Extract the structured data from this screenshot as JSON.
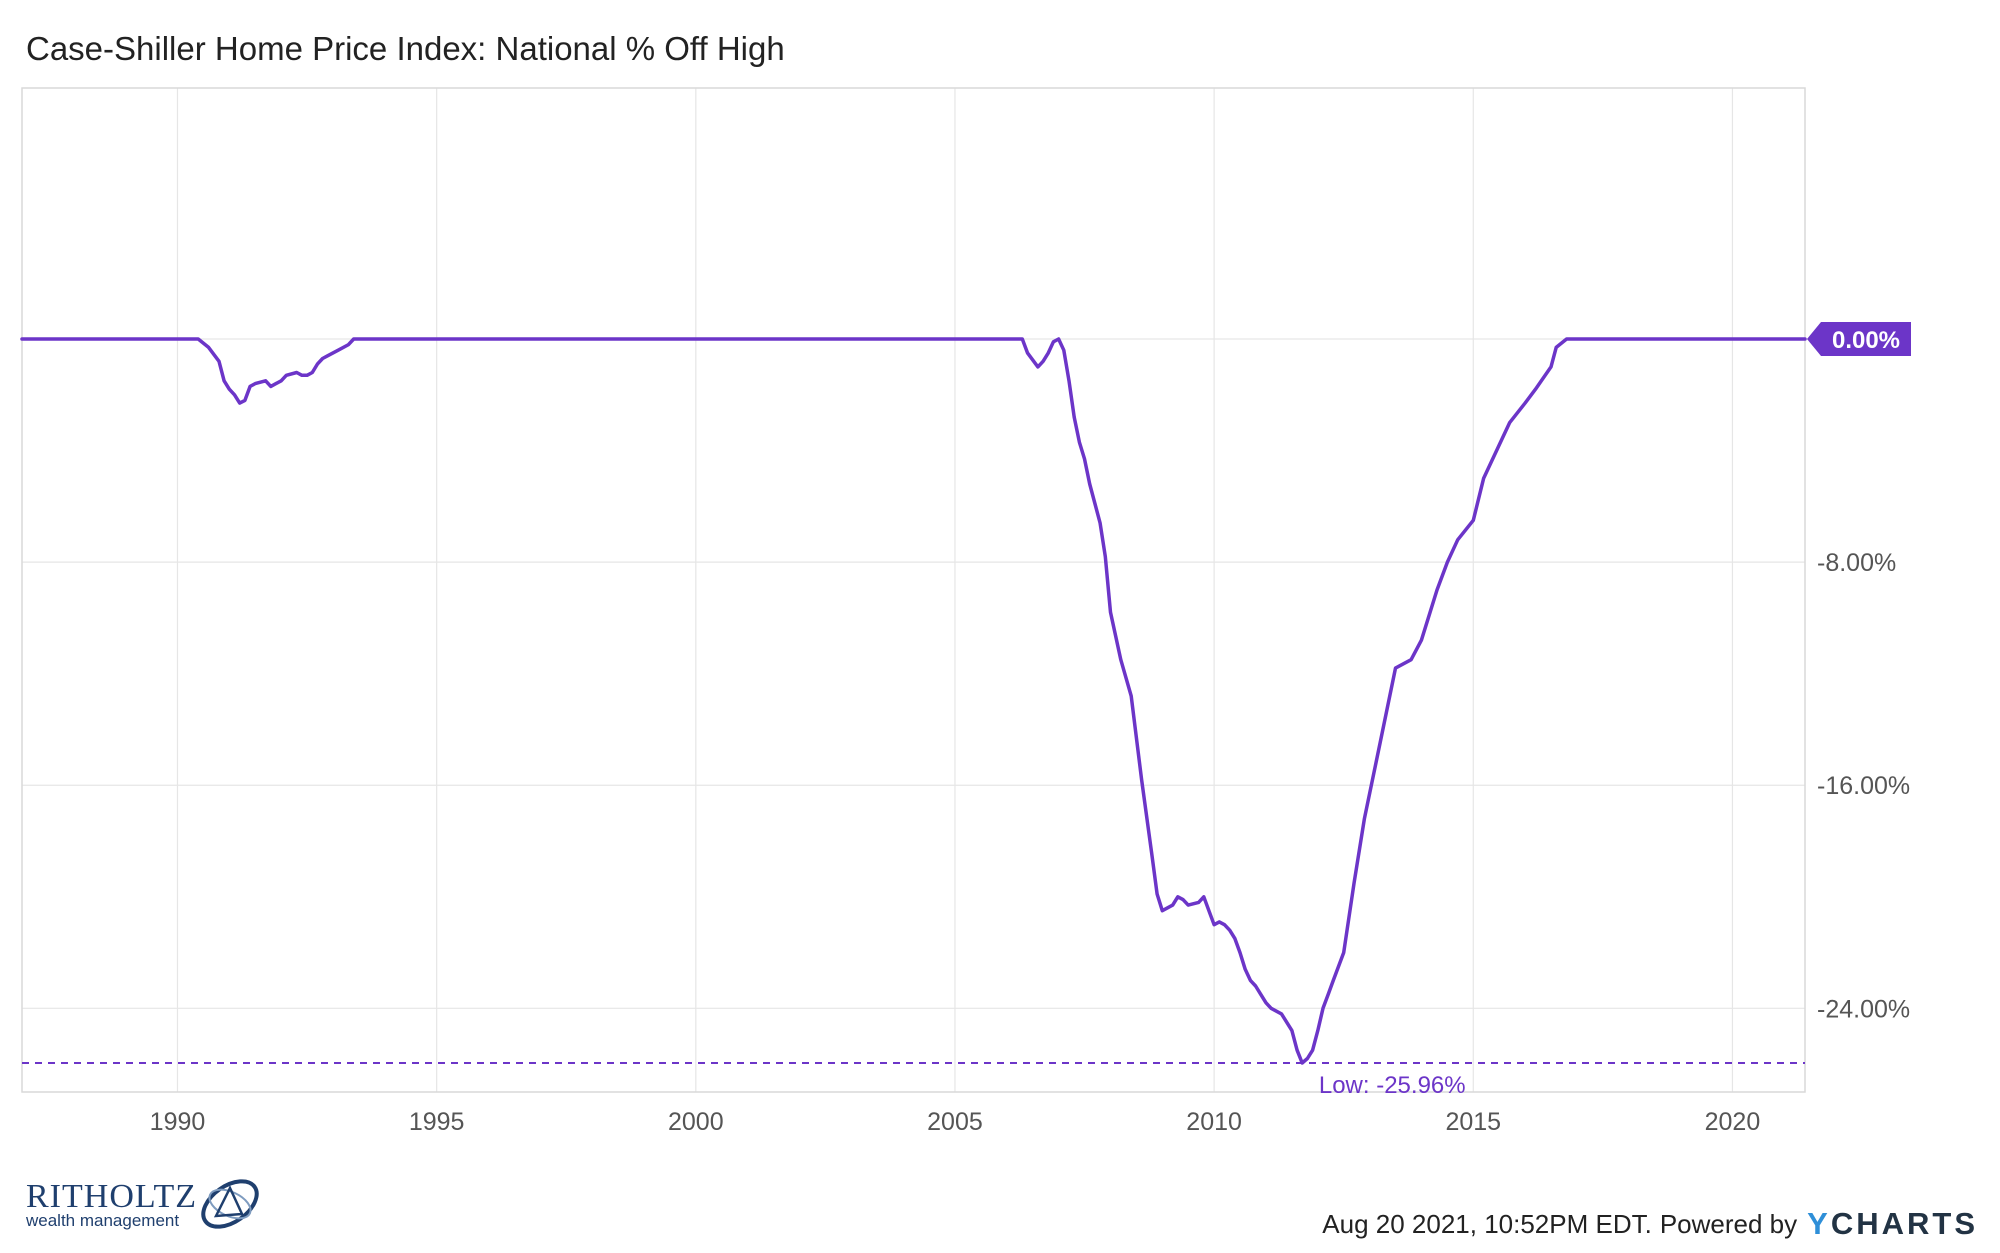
{
  "title": "Case-Shiller Home Price Index: National % Off High",
  "colors": {
    "line": "#6c35c8",
    "grid": "#e6e6e6",
    "text": "#555555"
  },
  "chart_data": {
    "type": "line",
    "title": "Case-Shiller Home Price Index: National % Off High",
    "xlabel": "",
    "ylabel": "",
    "x_ticks": [
      "1990",
      "1995",
      "2000",
      "2005",
      "2010",
      "2015",
      "2020"
    ],
    "y_ticks": [
      "0.00%",
      "-8.00%",
      "-16.00%",
      "-24.00%"
    ],
    "ylim": [
      -27.0,
      9.0
    ],
    "xlim": [
      1987.0,
      2021.4
    ],
    "grid": true,
    "legend": "none",
    "series": [
      {
        "color": "#6c35c8",
        "x": [
          1987.0,
          1990.4,
          1990.6,
          1990.8,
          1990.9,
          1991.0,
          1991.1,
          1991.2,
          1991.3,
          1991.4,
          1991.5,
          1991.7,
          1991.8,
          1991.9,
          1992.0,
          1992.1,
          1992.3,
          1992.4,
          1992.5,
          1992.6,
          1992.7,
          1992.8,
          1992.9,
          1993.1,
          1993.3,
          1993.4,
          1993.5,
          1993.6,
          1995.0,
          2000.0,
          2005.0,
          2006.3,
          2006.4,
          2006.6,
          2006.7,
          2006.8,
          2006.9,
          2007.0,
          2007.1,
          2007.2,
          2007.3,
          2007.4,
          2007.5,
          2007.6,
          2007.7,
          2007.8,
          2007.9,
          2008.0,
          2008.2,
          2008.4,
          2008.6,
          2008.8,
          2008.9,
          2009.0,
          2009.2,
          2009.3,
          2009.4,
          2009.5,
          2009.7,
          2009.8,
          2009.9,
          2010.0,
          2010.1,
          2010.2,
          2010.3,
          2010.4,
          2010.5,
          2010.6,
          2010.7,
          2010.8,
          2010.9,
          2011.0,
          2011.1,
          2011.3,
          2011.5,
          2011.6,
          2011.7,
          2011.8,
          2011.9,
          2012.0,
          2012.1,
          2012.2,
          2012.3,
          2012.5,
          2012.7,
          2012.9,
          2013.2,
          2013.5,
          2013.8,
          2014.0,
          2014.3,
          2014.5,
          2014.7,
          2015.0,
          2015.2,
          2015.5,
          2015.7,
          2016.0,
          2016.2,
          2016.5,
          2016.6,
          2016.8,
          2017.0,
          2018.0,
          2019.0,
          2020.0,
          2021.4
        ],
        "y": [
          0.0,
          0.0,
          -0.3,
          -0.8,
          -1.5,
          -1.8,
          -2.0,
          -2.3,
          -2.2,
          -1.7,
          -1.6,
          -1.5,
          -1.7,
          -1.6,
          -1.5,
          -1.3,
          -1.2,
          -1.3,
          -1.3,
          -1.2,
          -0.9,
          -0.7,
          -0.6,
          -0.4,
          -0.2,
          0.0,
          0.0,
          0.0,
          0.0,
          0.0,
          0.0,
          0.0,
          -0.5,
          -1.0,
          -0.8,
          -0.5,
          -0.1,
          0.0,
          -0.4,
          -1.5,
          -2.8,
          -3.7,
          -4.3,
          -5.2,
          -5.9,
          -6.6,
          -7.8,
          -9.8,
          -11.5,
          -12.8,
          -15.8,
          -18.5,
          -19.9,
          -20.5,
          -20.3,
          -20.0,
          -20.1,
          -20.3,
          -20.2,
          -20.0,
          -20.5,
          -21.0,
          -20.9,
          -21.0,
          -21.2,
          -21.5,
          -22.0,
          -22.6,
          -23.0,
          -23.2,
          -23.5,
          -23.8,
          -24.0,
          -24.2,
          -24.8,
          -25.5,
          -25.96,
          -25.8,
          -25.5,
          -24.8,
          -24.0,
          -23.5,
          -23.0,
          -22.0,
          -19.5,
          -17.2,
          -14.5,
          -11.8,
          -11.5,
          -10.8,
          -9.0,
          -8.0,
          -7.2,
          -6.5,
          -5.0,
          -3.8,
          -3.0,
          -2.3,
          -1.8,
          -1.0,
          -0.3,
          0.0,
          0.0,
          0.0,
          0.0,
          0.0,
          0.0
        ]
      }
    ],
    "annotations": {
      "current_value": "0.00%",
      "low_value": -25.96,
      "low_label": "Low: -25.96%"
    }
  },
  "footer": {
    "brand_name": "RITHOLTZ",
    "brand_sub": "wealth management",
    "timestamp": "Aug 20 2021, 10:52PM EDT.",
    "powered_by": "Powered by",
    "ycharts_y": "Y",
    "ycharts_rest": "CHARTS"
  }
}
